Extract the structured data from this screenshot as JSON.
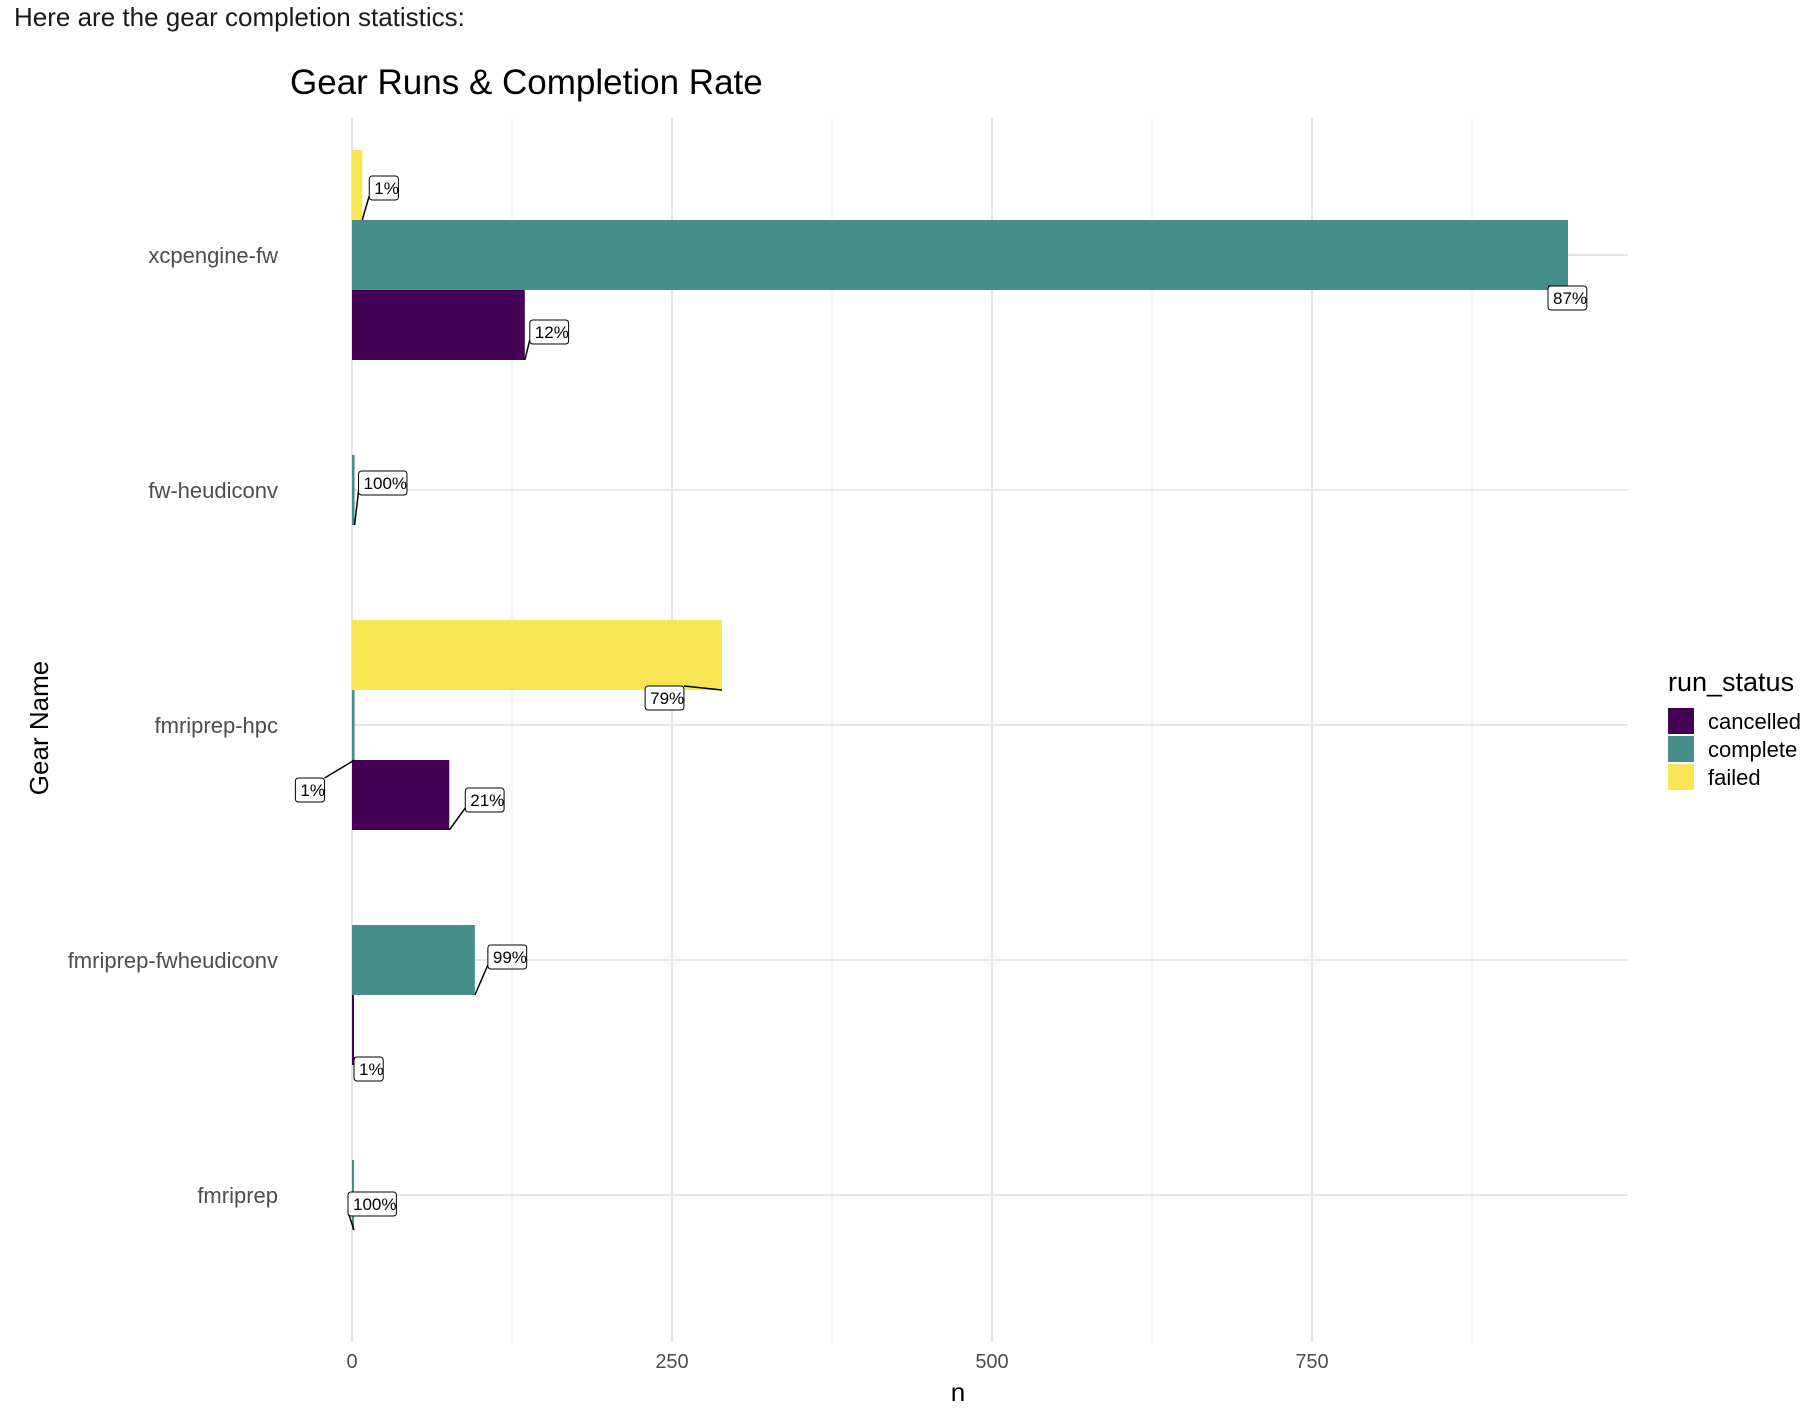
{
  "intro_text": "Here are the gear completion statistics:",
  "chart_data": {
    "type": "bar",
    "orientation": "horizontal",
    "position": "dodge",
    "title": "Gear Runs & Completion Rate",
    "xlabel": "n",
    "ylabel": "Gear Name",
    "xlim": [
      0,
      1000
    ],
    "x_ticks": [
      0,
      250,
      500,
      750
    ],
    "grid": true,
    "legend": {
      "title": "run_status",
      "placement": "right"
    },
    "categories": [
      "xcpengine-fw",
      "fw-heudiconv",
      "fmriprep-hpc",
      "fmriprep-fwheudiconv",
      "fmriprep"
    ],
    "series": [
      {
        "name": "cancelled",
        "color": "#440154",
        "values": [
          135,
          null,
          76,
          1,
          null
        ],
        "labels": [
          "12%",
          null,
          "21%",
          "1%",
          null
        ]
      },
      {
        "name": "complete",
        "color": "#468e89",
        "values": [
          950,
          2,
          2,
          96,
          1
        ],
        "labels": [
          "87%",
          "100%",
          "1%",
          "99%",
          "100%"
        ]
      },
      {
        "name": "failed",
        "color": "#f9e655",
        "values": [
          8,
          null,
          289,
          null,
          null
        ],
        "labels": [
          "1%",
          null,
          "79%",
          null,
          null
        ]
      }
    ]
  }
}
